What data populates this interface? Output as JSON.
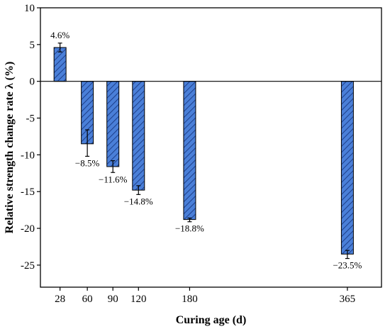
{
  "chart_data": {
    "type": "bar",
    "categories": [
      "28",
      "60",
      "90",
      "120",
      "180",
      "365"
    ],
    "x": [
      28,
      60,
      90,
      120,
      180,
      365
    ],
    "values": [
      4.6,
      -8.5,
      -11.6,
      -14.8,
      -18.8,
      -23.5
    ],
    "error_low": [
      0.6,
      1.7,
      0.8,
      0.6,
      0.3,
      0.6
    ],
    "error_high": [
      0.6,
      1.9,
      0.8,
      0.6,
      0.2,
      0.5
    ],
    "data_labels": [
      "4.6%",
      "−8.5%",
      "−11.6%",
      "−14.8%",
      "−18.8%",
      "−23.5%"
    ],
    "xlabel": "Curing age (d)",
    "ylabel": "Relative strength change rate λ (%)",
    "xlim": [
      5,
      405
    ],
    "ylim": [
      -28,
      10
    ],
    "yticks": [
      -25,
      -20,
      -15,
      -10,
      -5,
      0,
      5,
      10
    ],
    "ytick_labels": [
      "-25",
      "-20",
      "-15",
      "-10",
      "-5",
      "0",
      "5",
      "10"
    ],
    "bar_color": "#4a7fd8",
    "hatch": "diagonal",
    "grid": false,
    "zero_line": true
  }
}
